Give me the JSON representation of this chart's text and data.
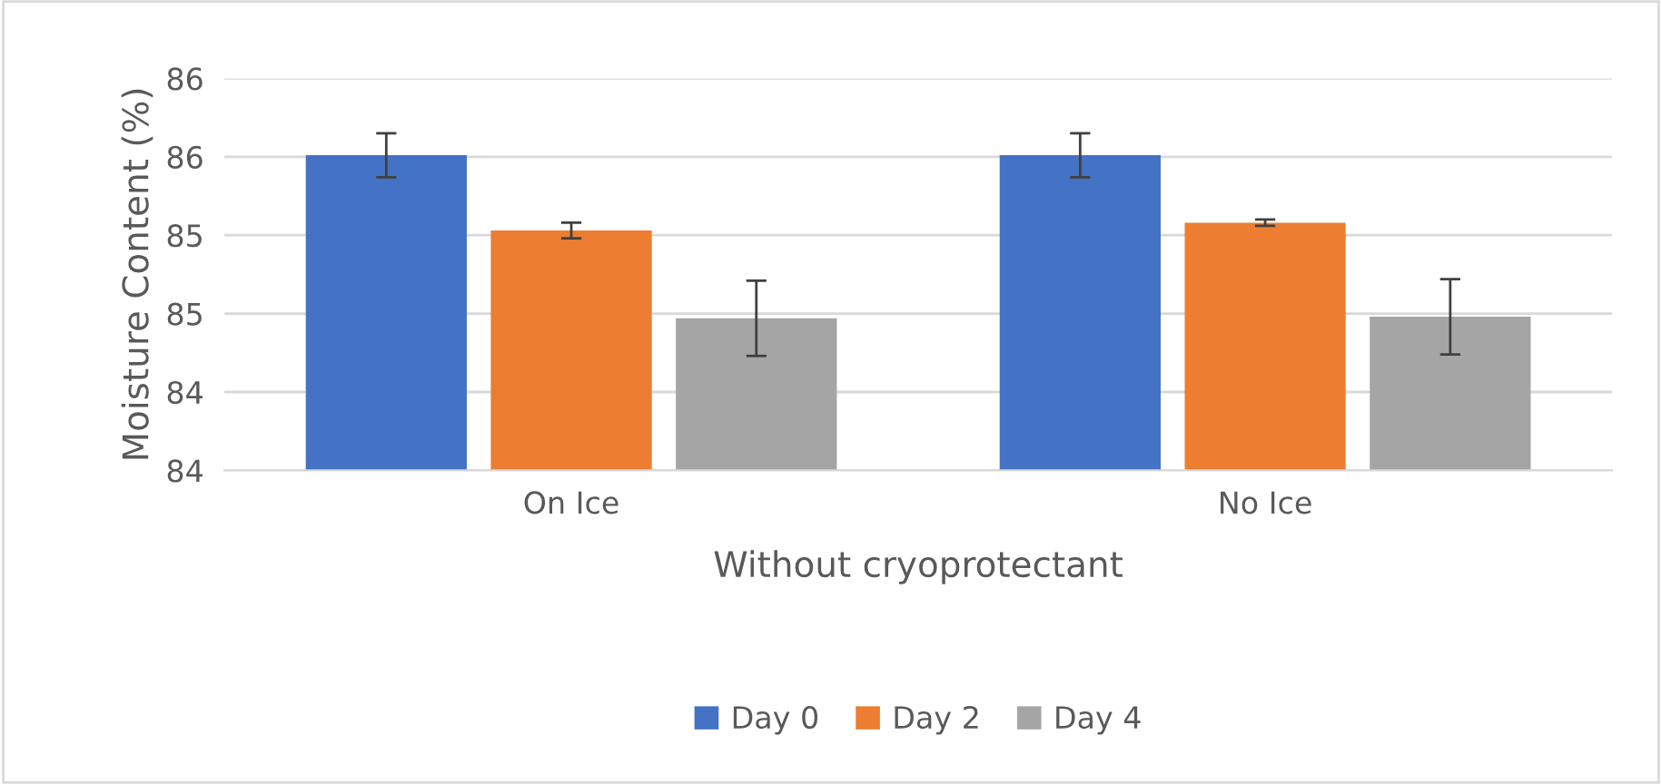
{
  "chart_data": {
    "type": "bar",
    "xlabel": "Without cryoprotectant",
    "ylabel": "Moisture Content (%)",
    "categories": [
      "On Ice",
      "No Ice"
    ],
    "series": [
      {
        "name": "Day 0",
        "color": "#4472c4",
        "values": [
          85.51,
          85.51
        ],
        "errors": [
          0.14,
          0.14
        ]
      },
      {
        "name": "Day 2",
        "color": "#ed7d31",
        "values": [
          85.03,
          85.08
        ],
        "errors": [
          0.05,
          0.02
        ]
      },
      {
        "name": "Day 4",
        "color": "#a5a5a5",
        "values": [
          84.47,
          84.48
        ],
        "errors": [
          0.24,
          0.24
        ]
      }
    ],
    "ylim": [
      83.5,
      86.0
    ],
    "yticks": [
      {
        "value": 83.5,
        "label": "84"
      },
      {
        "value": 84.0,
        "label": "84"
      },
      {
        "value": 84.5,
        "label": "85"
      },
      {
        "value": 85.0,
        "label": "85"
      },
      {
        "value": 85.5,
        "label": "86"
      },
      {
        "value": 86.0,
        "label": "86"
      }
    ],
    "grid": "y",
    "legend": "bottom"
  }
}
